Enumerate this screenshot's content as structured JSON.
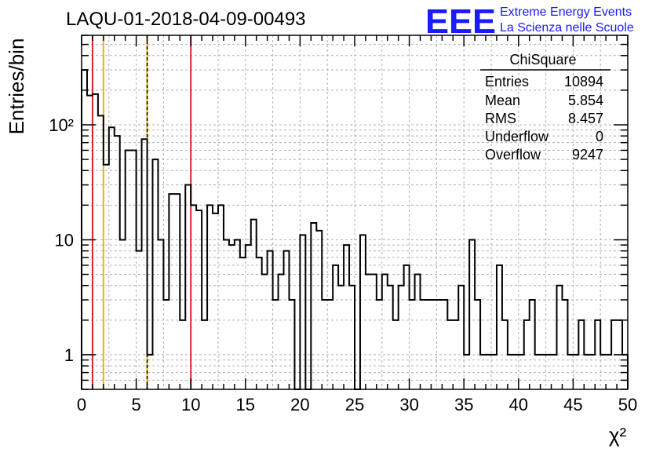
{
  "header": {
    "title": "LAQU-01-2018-04-09-00493",
    "logo_text": "EEE",
    "logo_line1": "Extreme Energy Events",
    "logo_line2": "La Scienza nelle Scuole"
  },
  "stats": {
    "name": "ChiSquare",
    "rows": [
      {
        "label": "Entries",
        "value": "10894"
      },
      {
        "label": "Mean",
        "value": "5.854"
      },
      {
        "label": "RMS",
        "value": "8.457"
      },
      {
        "label": "Underflow",
        "value": "0"
      },
      {
        "label": "Overflow",
        "value": "9247"
      }
    ]
  },
  "colors": {
    "histogram": "#000000",
    "red_line": "#dd2222",
    "orange_line": "#f0b400",
    "grid": "#b0b0b0",
    "logo": "#1a1aff"
  },
  "chart_data": {
    "type": "bar",
    "histogram": true,
    "xlabel": "χ²",
    "ylabel": "Entries/bin",
    "xlim": [
      0,
      50
    ],
    "ylim": [
      0.5,
      600
    ],
    "y_scale": "log",
    "grid": true,
    "bin_width": 0.5,
    "x_ticks": [
      0,
      5,
      10,
      15,
      20,
      25,
      30,
      35,
      40,
      45,
      50
    ],
    "x_tick_labels": [
      "0",
      "5",
      "10",
      "15",
      "20",
      "25",
      "30",
      "35",
      "40",
      "45",
      "50"
    ],
    "y_ticks": [
      1,
      10,
      100
    ],
    "y_tick_labels": [
      "1",
      "10",
      "10²"
    ],
    "values": [
      300,
      180,
      185,
      120,
      45,
      95,
      80,
      10,
      60,
      60,
      8,
      75,
      1,
      50,
      10,
      3,
      25,
      25,
      2,
      30,
      20,
      18,
      2,
      20,
      17,
      20,
      10,
      9,
      10,
      7,
      9,
      15,
      7,
      5,
      8,
      3,
      5,
      8,
      3,
      0,
      11,
      0,
      14,
      12,
      3,
      3,
      6,
      4,
      9,
      4,
      0,
      11,
      5,
      5,
      3,
      5,
      4,
      2,
      4,
      6,
      3,
      5,
      3,
      3,
      3,
      3,
      3,
      2,
      2,
      4,
      1,
      10,
      3,
      1,
      1,
      1,
      6,
      2,
      1,
      1,
      1,
      2,
      3,
      1,
      1,
      1,
      1,
      4,
      3,
      1,
      1,
      2,
      1,
      1,
      2,
      1,
      1,
      2,
      2,
      1
    ],
    "vertical_lines": [
      {
        "x": 1,
        "color": "red"
      },
      {
        "x": 2,
        "color": "orange"
      },
      {
        "x": 6,
        "color": "orange",
        "dashed": true
      },
      {
        "x": 10,
        "color": "red"
      }
    ]
  }
}
